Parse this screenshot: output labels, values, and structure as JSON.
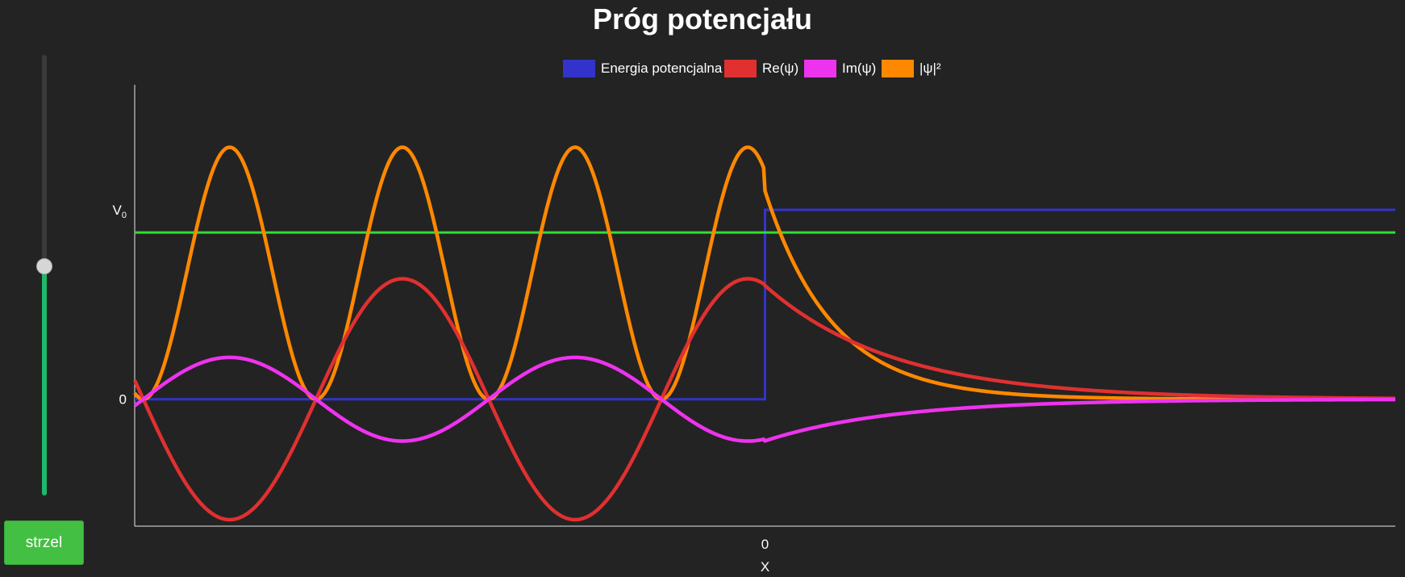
{
  "title": "Próg potencjału",
  "slider": {
    "value": 0.52
  },
  "shoot_button": {
    "label": "strzel"
  },
  "colors": {
    "background": "#232323",
    "potential": "#3333cc",
    "re": "#e03030",
    "im": "#ee33ee",
    "prob": "#ff8800",
    "energy": "#33dd33",
    "slider_fill": "#1db86a",
    "button": "#43bf43"
  },
  "chart_data": {
    "type": "line",
    "xlabel": "X",
    "x_ticks": [
      {
        "value": 0,
        "label": "0"
      }
    ],
    "y_ticks": [
      {
        "value": 0,
        "label": "0"
      },
      {
        "value": 1,
        "label": "V",
        "sub": "0"
      }
    ],
    "xlim": [
      -3.65,
      3.65
    ],
    "ylim": [
      -0.67,
      1.66
    ],
    "energy_level": 0.88,
    "legend": [
      {
        "key": "potential",
        "label": "Energia potencjalna"
      },
      {
        "key": "re",
        "label": "Re(ψ)"
      },
      {
        "key": "im",
        "label": "Im(ψ)"
      },
      {
        "key": "prob",
        "label": "|ψ|²"
      }
    ],
    "legend_position": "top",
    "grid": false,
    "series": [
      {
        "key": "potential",
        "name": "Energia potencjalna",
        "x": [
          -3.65,
          0,
          0,
          3.65
        ],
        "y": [
          0,
          0,
          1,
          1
        ]
      },
      {
        "key": "re",
        "name": "Re(ψ)",
        "x": [
          -3.65,
          -3.1,
          -2.6,
          -2.1,
          -1.6,
          -1.1,
          -0.6,
          -0.1,
          0,
          0.6,
          1.2,
          1.8,
          2.4,
          3.0,
          3.65
        ],
        "y": [
          0.09,
          -0.63,
          0,
          0.63,
          0,
          -0.63,
          0,
          0.62,
          0.58,
          0.3,
          0.15,
          0.08,
          0.04,
          0.02,
          0.01
        ]
      },
      {
        "key": "im",
        "name": "Im(ψ)",
        "x": [
          -3.65,
          -3.1,
          -2.6,
          -2.1,
          -1.6,
          -1.1,
          -0.6,
          -0.1,
          0,
          0.6,
          1.2,
          1.8,
          2.4,
          3.0,
          3.65
        ],
        "y": [
          -0.04,
          0.22,
          0,
          -0.22,
          0,
          0.22,
          0,
          -0.22,
          -0.21,
          -0.11,
          -0.06,
          -0.03,
          -0.02,
          -0.01,
          -0.005
        ]
      },
      {
        "key": "prob",
        "name": "|ψ|²",
        "x": [
          -3.65,
          -3.1,
          -2.6,
          -2.1,
          -1.6,
          -1.1,
          -0.6,
          -0.1,
          0,
          0.6,
          1.2,
          1.8,
          2.4,
          3.0,
          3.65
        ],
        "y": [
          0.01,
          1.33,
          0,
          1.33,
          0,
          1.33,
          0,
          1.33,
          1.1,
          0.32,
          0.09,
          0.03,
          0.01,
          0.004,
          0.001
        ]
      }
    ]
  }
}
